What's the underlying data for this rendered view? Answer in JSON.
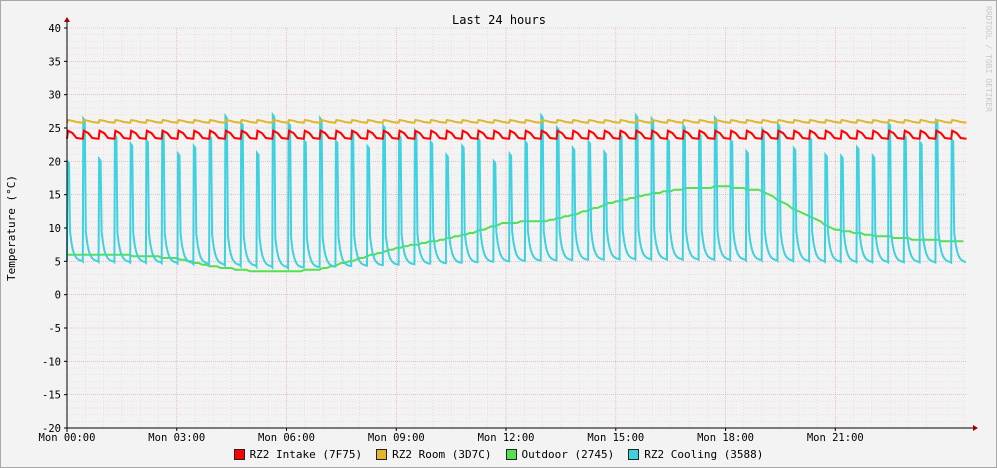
{
  "chart_data": {
    "type": "line",
    "title": "Last 24 hours",
    "ylabel": "Temperature (°C)",
    "watermark": "RRDTOOL / TOBI OETIKER",
    "ylim": [
      -20,
      40
    ],
    "xlim_hours": [
      0,
      24.6
    ],
    "yticks": [
      "40",
      "35",
      "30",
      "25",
      "20",
      "15",
      "10",
      "5",
      "0",
      "-5",
      "-10",
      "-15",
      "-20"
    ],
    "xticks": [
      {
        "label": "Mon 00:00",
        "hour": 0
      },
      {
        "label": "Mon 03:00",
        "hour": 3
      },
      {
        "label": "Mon 06:00",
        "hour": 6
      },
      {
        "label": "Mon 09:00",
        "hour": 9
      },
      {
        "label": "Mon 12:00",
        "hour": 12
      },
      {
        "label": "Mon 15:00",
        "hour": 15
      },
      {
        "label": "Mon 18:00",
        "hour": 18
      },
      {
        "label": "Mon 21:00",
        "hour": 21
      }
    ],
    "series": [
      {
        "name": "RZ2 Intake (7F75)",
        "color": "#ff0000",
        "baseline": 23.4,
        "peak": 24.6,
        "cycle_count": 57
      },
      {
        "name": "RZ2 Room (3D7C)",
        "color": "#e2b52a",
        "baseline": 25.8,
        "peak": 26.2,
        "cycle_count": 57
      },
      {
        "name": "Outdoor (2745)",
        "color": "#55e04f",
        "x": [
          0,
          1,
          2,
          3,
          4,
          5,
          6,
          7,
          8,
          9,
          10,
          11,
          12,
          13,
          14,
          15,
          16,
          17,
          18,
          19,
          20,
          21,
          22,
          23,
          24.6
        ],
        "y": [
          6,
          6.1,
          5.8,
          5.5,
          4.2,
          3.6,
          3.4,
          3.9,
          5.4,
          7,
          8,
          9.2,
          10.8,
          11,
          12.2,
          14,
          15.2,
          16,
          16.2,
          15.6,
          12.5,
          9.8,
          8.9,
          8.4,
          7.9
        ]
      },
      {
        "name": "RZ2 Cooling (3588)",
        "color": "#3ed1e0",
        "baseline_x": [
          0,
          3,
          6,
          9,
          12,
          15,
          18,
          21,
          24.6
        ],
        "baseline_y": [
          5,
          4.7,
          4,
          4.5,
          5,
          5.3,
          5.2,
          4.9,
          4.8
        ],
        "peak_low": 20,
        "peak_high": 27,
        "cycle_count": 57
      }
    ]
  }
}
